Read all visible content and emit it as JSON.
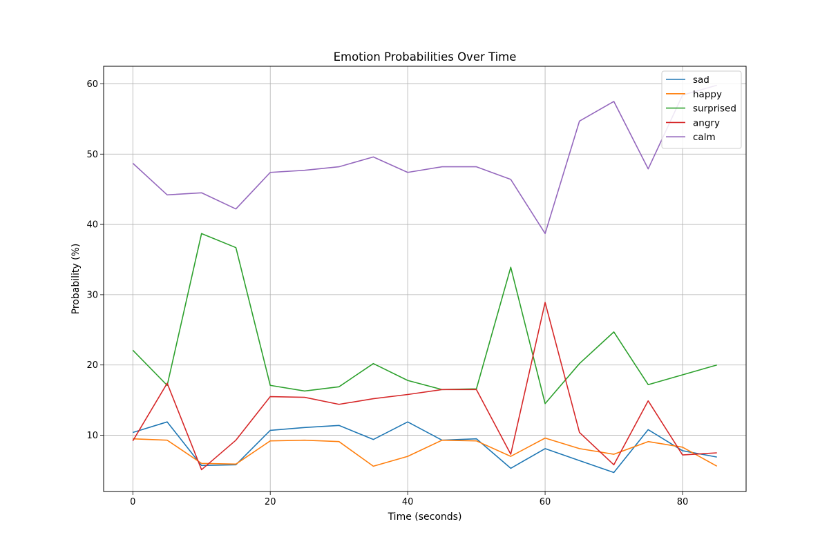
{
  "chart_data": {
    "type": "line",
    "title": "Emotion Probabilities Over Time",
    "xlabel": "Time (seconds)",
    "ylabel": "Probability (%)",
    "x": [
      0,
      5,
      10,
      15,
      20,
      25,
      30,
      35,
      40,
      45,
      50,
      55,
      60,
      65,
      70,
      75,
      80,
      85
    ],
    "xlim": [
      -4.25,
      89.25
    ],
    "ylim": [
      2.0,
      62.5
    ],
    "xticks": [
      0,
      20,
      40,
      60,
      80
    ],
    "yticks": [
      10,
      20,
      30,
      40,
      50,
      60
    ],
    "grid": true,
    "legend_position": "top-right",
    "series": [
      {
        "name": "sad",
        "color": "#1f77b4",
        "values": [
          10.4,
          11.9,
          5.7,
          5.8,
          10.7,
          11.1,
          11.4,
          9.4,
          11.9,
          9.3,
          9.5,
          5.3,
          8.1,
          6.4,
          4.7,
          10.8,
          7.8,
          6.9
        ]
      },
      {
        "name": "happy",
        "color": "#ff7f0e",
        "values": [
          9.5,
          9.3,
          6.0,
          5.9,
          9.2,
          9.3,
          9.1,
          5.6,
          7.0,
          9.3,
          9.2,
          7.0,
          9.6,
          8.1,
          7.3,
          9.1,
          8.3,
          5.6
        ]
      },
      {
        "name": "surprised",
        "color": "#2ca02c",
        "values": [
          22.1,
          17.1,
          38.7,
          36.7,
          17.1,
          16.3,
          16.9,
          20.2,
          17.8,
          16.5,
          16.6,
          33.9,
          14.5,
          20.2,
          24.7,
          17.2,
          18.6,
          20.0
        ]
      },
      {
        "name": "angry",
        "color": "#d62728",
        "values": [
          9.2,
          17.4,
          5.1,
          9.3,
          15.5,
          15.4,
          14.4,
          15.2,
          15.8,
          16.5,
          16.5,
          7.3,
          28.9,
          10.4,
          5.8,
          14.9,
          7.2,
          7.5
        ]
      },
      {
        "name": "calm",
        "color": "#9467bd",
        "values": [
          48.7,
          44.2,
          44.5,
          42.2,
          47.4,
          47.7,
          48.2,
          49.6,
          47.4,
          48.2,
          48.2,
          46.4,
          38.7,
          54.7,
          57.5,
          47.9,
          58.4,
          59.8
        ]
      }
    ]
  }
}
